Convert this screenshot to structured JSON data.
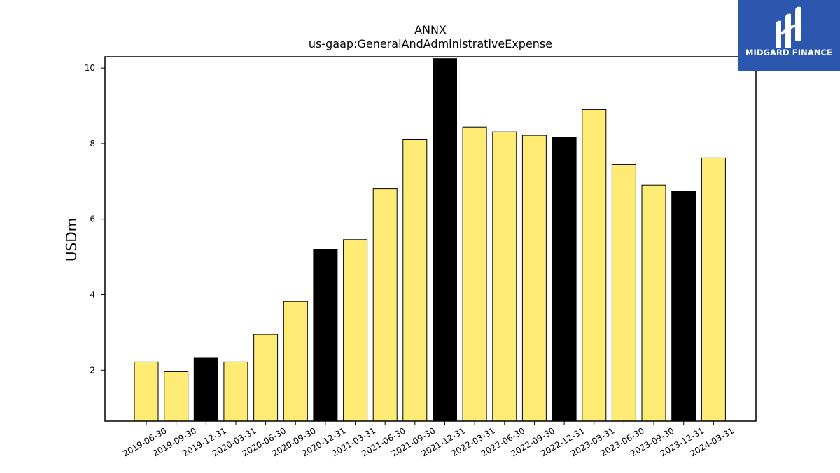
{
  "brand": {
    "name": "MIDGARD FINANCE",
    "icon": "midgard-m-logo-icon",
    "background": "#2b57ae"
  },
  "chart_data": {
    "type": "bar",
    "title": "ANNX",
    "subtitle": "us-gaap:GeneralAndAdministrativeExpense",
    "xlabel": "",
    "ylabel": "USDm",
    "categories": [
      "2019-06-30",
      "2019-09-30",
      "2019-12-31",
      "2020-03-31",
      "2020-06-30",
      "2020-09-30",
      "2020-12-31",
      "2021-03-31",
      "2021-06-30",
      "2021-09-30",
      "2021-12-31",
      "2022-03-31",
      "2022-06-30",
      "2022-09-30",
      "2022-12-31",
      "2023-03-31",
      "2023-06-30",
      "2023-09-30",
      "2023-12-31",
      "2024-03-31"
    ],
    "values": [
      2.22,
      1.96,
      2.32,
      2.22,
      2.95,
      3.82,
      5.19,
      5.46,
      6.8,
      8.1,
      10.25,
      8.44,
      8.31,
      8.22,
      8.16,
      8.9,
      7.45,
      6.9,
      6.74,
      7.62
    ],
    "bar_colors": [
      "#feeb75",
      "#feeb75",
      "#000000",
      "#feeb75",
      "#feeb75",
      "#feeb75",
      "#000000",
      "#feeb75",
      "#feeb75",
      "#feeb75",
      "#000000",
      "#feeb75",
      "#feeb75",
      "#feeb75",
      "#000000",
      "#feeb75",
      "#feeb75",
      "#feeb75",
      "#000000",
      "#feeb75"
    ],
    "yticks": [
      2,
      4,
      6,
      8,
      10
    ],
    "ylim": [
      0.65,
      10.3
    ],
    "grid": false,
    "legend": "none"
  }
}
